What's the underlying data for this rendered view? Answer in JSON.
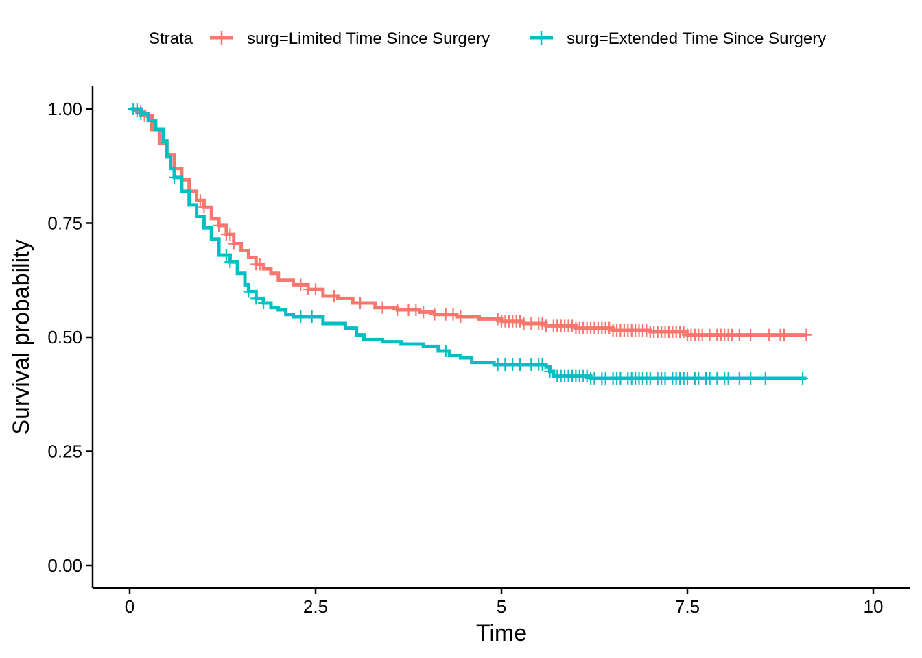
{
  "chart_data": {
    "type": "line",
    "title": "",
    "xlabel": "Time",
    "ylabel": "Survival probability",
    "xlim": [
      -0.5,
      10.5
    ],
    "ylim": [
      -0.05,
      1.05
    ],
    "x_ticks": [
      0,
      2.5,
      5,
      7.5,
      10
    ],
    "x_tick_labels": [
      "0",
      "2.5",
      "5",
      "7.5",
      "10"
    ],
    "y_ticks": [
      0,
      0.25,
      0.5,
      0.75,
      1.0
    ],
    "y_tick_labels": [
      "0.00",
      "0.25",
      "0.50",
      "0.75",
      "1.00"
    ],
    "grid": false,
    "legend": {
      "title": "Strata",
      "position": "top"
    },
    "series": [
      {
        "name": "surg=Limited Time Since Surgery",
        "color": "#F8766D",
        "step_points": [
          [
            0,
            1.0
          ],
          [
            0.1,
            0.995
          ],
          [
            0.2,
            0.985
          ],
          [
            0.3,
            0.955
          ],
          [
            0.4,
            0.925
          ],
          [
            0.5,
            0.9
          ],
          [
            0.6,
            0.87
          ],
          [
            0.7,
            0.845
          ],
          [
            0.8,
            0.82
          ],
          [
            0.9,
            0.8
          ],
          [
            1.0,
            0.785
          ],
          [
            1.1,
            0.76
          ],
          [
            1.2,
            0.745
          ],
          [
            1.3,
            0.725
          ],
          [
            1.4,
            0.705
          ],
          [
            1.5,
            0.69
          ],
          [
            1.6,
            0.675
          ],
          [
            1.7,
            0.66
          ],
          [
            1.8,
            0.65
          ],
          [
            1.9,
            0.64
          ],
          [
            2.0,
            0.625
          ],
          [
            2.2,
            0.615
          ],
          [
            2.4,
            0.605
          ],
          [
            2.6,
            0.59
          ],
          [
            2.8,
            0.585
          ],
          [
            3.0,
            0.575
          ],
          [
            3.3,
            0.565
          ],
          [
            3.6,
            0.56
          ],
          [
            3.9,
            0.555
          ],
          [
            4.1,
            0.55
          ],
          [
            4.4,
            0.545
          ],
          [
            4.7,
            0.54
          ],
          [
            5.0,
            0.535
          ],
          [
            5.3,
            0.53
          ],
          [
            5.6,
            0.525
          ],
          [
            6.0,
            0.52
          ],
          [
            6.5,
            0.515
          ],
          [
            7.0,
            0.512
          ],
          [
            7.5,
            0.505
          ],
          [
            9.1,
            0.505
          ]
        ],
        "censor_times": [
          0.05,
          0.1,
          0.15,
          0.2,
          0.95,
          1.0,
          1.2,
          1.3,
          1.35,
          1.4,
          1.7,
          1.75,
          2.3,
          2.4,
          2.5,
          2.75,
          3.1,
          3.4,
          3.6,
          3.75,
          3.85,
          3.95,
          4.1,
          4.25,
          4.35,
          4.45,
          4.95,
          5.0,
          5.05,
          5.1,
          5.15,
          5.2,
          5.25,
          5.3,
          5.4,
          5.5,
          5.55,
          5.6,
          5.7,
          5.75,
          5.8,
          5.85,
          5.9,
          5.95,
          6.0,
          6.05,
          6.1,
          6.15,
          6.2,
          6.25,
          6.3,
          6.35,
          6.4,
          6.45,
          6.5,
          6.55,
          6.6,
          6.65,
          6.7,
          6.75,
          6.8,
          6.85,
          6.9,
          6.95,
          7.0,
          7.05,
          7.1,
          7.15,
          7.2,
          7.25,
          7.3,
          7.35,
          7.4,
          7.45,
          7.5,
          7.55,
          7.6,
          7.65,
          7.7,
          7.8,
          7.9,
          7.95,
          8.0,
          8.05,
          8.1,
          8.2,
          8.35,
          8.6,
          8.75,
          8.8,
          9.1
        ]
      },
      {
        "name": "surg=Extended Time Since Surgery",
        "color": "#00BFC4",
        "step_points": [
          [
            0,
            1.0
          ],
          [
            0.15,
            0.99
          ],
          [
            0.25,
            0.975
          ],
          [
            0.35,
            0.955
          ],
          [
            0.45,
            0.93
          ],
          [
            0.5,
            0.895
          ],
          [
            0.55,
            0.87
          ],
          [
            0.6,
            0.85
          ],
          [
            0.7,
            0.82
          ],
          [
            0.8,
            0.79
          ],
          [
            0.9,
            0.765
          ],
          [
            1.0,
            0.74
          ],
          [
            1.1,
            0.715
          ],
          [
            1.2,
            0.68
          ],
          [
            1.35,
            0.665
          ],
          [
            1.45,
            0.64
          ],
          [
            1.55,
            0.615
          ],
          [
            1.6,
            0.6
          ],
          [
            1.7,
            0.585
          ],
          [
            1.8,
            0.575
          ],
          [
            1.9,
            0.565
          ],
          [
            2.0,
            0.56
          ],
          [
            2.1,
            0.55
          ],
          [
            2.2,
            0.545
          ],
          [
            2.6,
            0.53
          ],
          [
            2.9,
            0.52
          ],
          [
            3.05,
            0.505
          ],
          [
            3.15,
            0.495
          ],
          [
            3.4,
            0.49
          ],
          [
            3.65,
            0.485
          ],
          [
            3.95,
            0.48
          ],
          [
            4.15,
            0.47
          ],
          [
            4.3,
            0.46
          ],
          [
            4.45,
            0.455
          ],
          [
            4.6,
            0.445
          ],
          [
            4.9,
            0.44
          ],
          [
            5.6,
            0.435
          ],
          [
            5.65,
            0.425
          ],
          [
            5.7,
            0.415
          ],
          [
            6.2,
            0.41
          ],
          [
            9.1,
            0.41
          ]
        ],
        "censor_times": [
          0.05,
          0.1,
          0.15,
          0.6,
          1.3,
          1.35,
          1.6,
          1.7,
          1.8,
          2.3,
          2.45,
          4.25,
          4.95,
          5.05,
          5.15,
          5.25,
          5.4,
          5.5,
          5.55,
          5.65,
          5.75,
          5.8,
          5.85,
          5.9,
          5.95,
          6.0,
          6.05,
          6.1,
          6.15,
          6.2,
          6.25,
          6.35,
          6.4,
          6.5,
          6.55,
          6.6,
          6.7,
          6.75,
          6.8,
          6.85,
          6.9,
          6.95,
          7.0,
          7.1,
          7.15,
          7.2,
          7.3,
          7.35,
          7.4,
          7.45,
          7.5,
          7.6,
          7.65,
          7.75,
          7.8,
          7.9,
          8.0,
          8.05,
          8.2,
          8.35,
          8.55,
          9.05
        ]
      }
    ]
  }
}
